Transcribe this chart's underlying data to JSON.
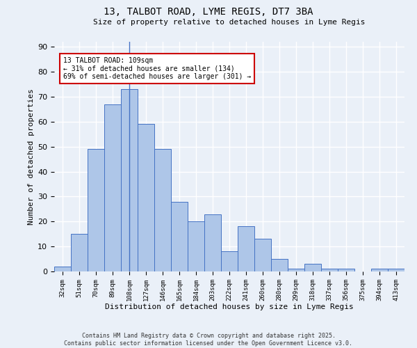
{
  "title": "13, TALBOT ROAD, LYME REGIS, DT7 3BA",
  "subtitle": "Size of property relative to detached houses in Lyme Regis",
  "xlabel": "Distribution of detached houses by size in Lyme Regis",
  "ylabel": "Number of detached properties",
  "categories": [
    "32sqm",
    "51sqm",
    "70sqm",
    "89sqm",
    "108sqm",
    "127sqm",
    "146sqm",
    "165sqm",
    "184sqm",
    "203sqm",
    "222sqm",
    "241sqm",
    "260sqm",
    "280sqm",
    "299sqm",
    "318sqm",
    "337sqm",
    "356sqm",
    "375sqm",
    "394sqm",
    "413sqm"
  ],
  "values": [
    2,
    15,
    49,
    67,
    73,
    59,
    49,
    28,
    20,
    23,
    8,
    18,
    13,
    5,
    1,
    3,
    1,
    1,
    0,
    1,
    1
  ],
  "bar_color": "#aec6e8",
  "bar_edge_color": "#4472c4",
  "highlight_index": 4,
  "highlight_line_color": "#4472c4",
  "annotation_text": "13 TALBOT ROAD: 109sqm\n← 31% of detached houses are smaller (134)\n69% of semi-detached houses are larger (301) →",
  "annotation_box_color": "#ffffff",
  "annotation_box_edge_color": "#cc0000",
  "ylim": [
    0,
    92
  ],
  "yticks": [
    0,
    10,
    20,
    30,
    40,
    50,
    60,
    70,
    80,
    90
  ],
  "bg_color": "#eaf0f8",
  "grid_color": "#ffffff",
  "footer_line1": "Contains HM Land Registry data © Crown copyright and database right 2025.",
  "footer_line2": "Contains public sector information licensed under the Open Government Licence v3.0."
}
